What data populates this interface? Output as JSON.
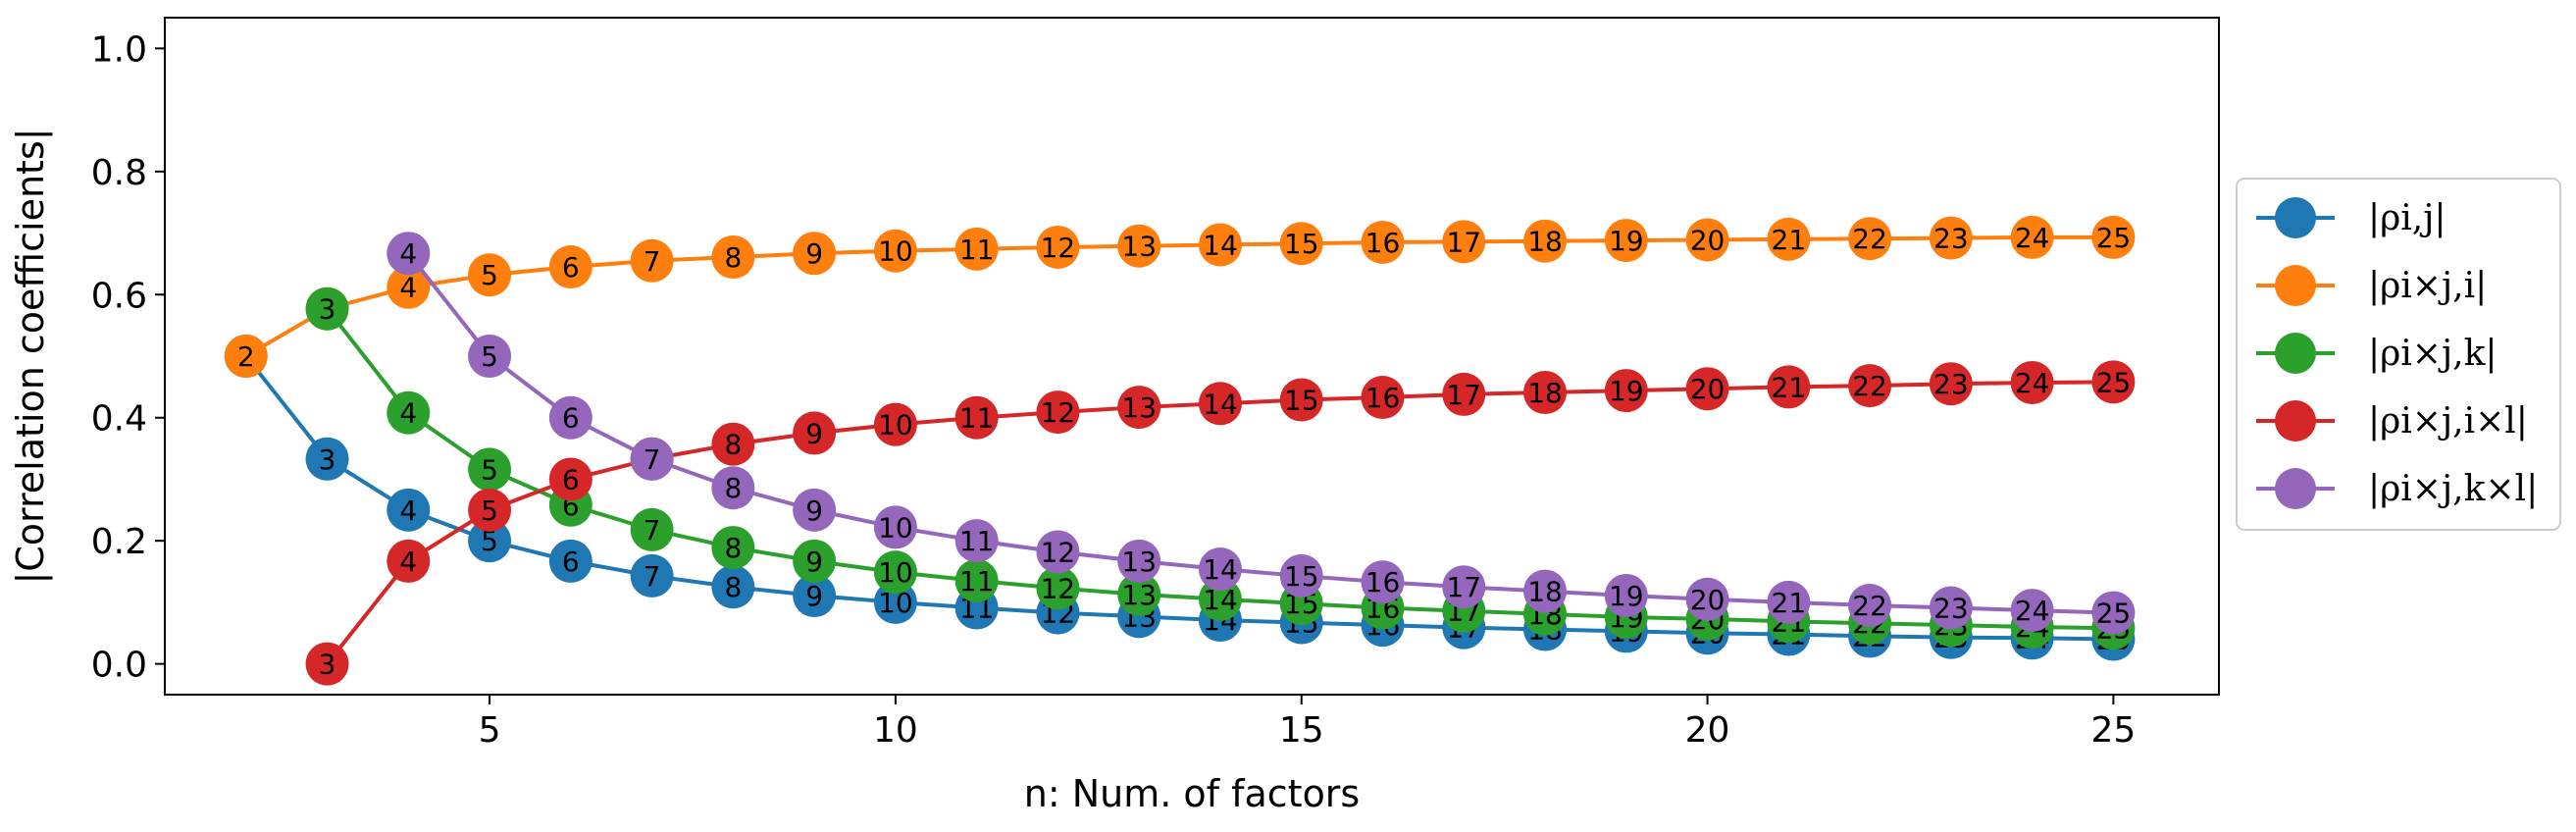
{
  "chart_data": {
    "type": "line",
    "title": "",
    "xlabel": "n: Num. of factors",
    "ylabel": "|Correlation coefficients|",
    "xlim": [
      1.0,
      26.3
    ],
    "ylim": [
      -0.05,
      1.05
    ],
    "xticks": [
      5,
      10,
      15,
      20,
      25
    ],
    "yticks": [
      0.0,
      0.2,
      0.4,
      0.6,
      0.8,
      1.0
    ],
    "xtick_labels": [
      "5",
      "10",
      "15",
      "20",
      "25"
    ],
    "ytick_labels": [
      "0.0",
      "0.2",
      "0.4",
      "0.6",
      "0.8",
      "1.0"
    ],
    "grid": false,
    "legend_position": "outside-right",
    "point_labels": "n value printed inside each marker",
    "series": [
      {
        "name": "|ρi,j|",
        "color": "#1f77b4",
        "x": [
          2,
          3,
          4,
          5,
          6,
          7,
          8,
          9,
          10,
          11,
          12,
          13,
          14,
          15,
          16,
          17,
          18,
          19,
          20,
          21,
          22,
          23,
          24,
          25
        ],
        "values": [
          0.5,
          0.333,
          0.25,
          0.2,
          0.167,
          0.143,
          0.125,
          0.111,
          0.1,
          0.091,
          0.083,
          0.077,
          0.071,
          0.067,
          0.063,
          0.059,
          0.056,
          0.053,
          0.05,
          0.048,
          0.045,
          0.043,
          0.042,
          0.04
        ]
      },
      {
        "name": "|ρi×j,i|",
        "color": "#ff7f0e",
        "x": [
          2,
          3,
          4,
          5,
          6,
          7,
          8,
          9,
          10,
          11,
          12,
          13,
          14,
          15,
          16,
          17,
          18,
          19,
          20,
          21,
          22,
          23,
          24,
          25
        ],
        "values": [
          0.5,
          0.577,
          0.612,
          0.632,
          0.645,
          0.655,
          0.661,
          0.667,
          0.671,
          0.674,
          0.677,
          0.679,
          0.681,
          0.683,
          0.685,
          0.686,
          0.687,
          0.688,
          0.689,
          0.69,
          0.691,
          0.692,
          0.693,
          0.693
        ]
      },
      {
        "name": "|ρi×j,k|",
        "color": "#2ca02c",
        "x": [
          3,
          4,
          5,
          6,
          7,
          8,
          9,
          10,
          11,
          12,
          13,
          14,
          15,
          16,
          17,
          18,
          19,
          20,
          21,
          22,
          23,
          24,
          25
        ],
        "values": [
          0.577,
          0.408,
          0.316,
          0.258,
          0.218,
          0.189,
          0.167,
          0.149,
          0.135,
          0.123,
          0.113,
          0.105,
          0.098,
          0.091,
          0.086,
          0.081,
          0.076,
          0.073,
          0.069,
          0.066,
          0.063,
          0.06,
          0.058
        ]
      },
      {
        "name": "|ρi×j,i×l|",
        "color": "#d62728",
        "x": [
          3,
          4,
          5,
          6,
          7,
          8,
          9,
          10,
          11,
          12,
          13,
          14,
          15,
          16,
          17,
          18,
          19,
          20,
          21,
          22,
          23,
          24,
          25
        ],
        "values": [
          0.0,
          0.167,
          0.25,
          0.3,
          0.333,
          0.357,
          0.375,
          0.389,
          0.4,
          0.409,
          0.417,
          0.423,
          0.429,
          0.433,
          0.438,
          0.441,
          0.444,
          0.447,
          0.45,
          0.452,
          0.455,
          0.457,
          0.458
        ]
      },
      {
        "name": "|ρi×j,k×l|",
        "color": "#9467bd",
        "x": [
          4,
          5,
          6,
          7,
          8,
          9,
          10,
          11,
          12,
          13,
          14,
          15,
          16,
          17,
          18,
          19,
          20,
          21,
          22,
          23,
          24,
          25
        ],
        "values": [
          0.667,
          0.5,
          0.4,
          0.333,
          0.286,
          0.25,
          0.222,
          0.2,
          0.182,
          0.167,
          0.154,
          0.143,
          0.133,
          0.125,
          0.118,
          0.111,
          0.105,
          0.1,
          0.095,
          0.091,
          0.087,
          0.083
        ]
      }
    ]
  }
}
